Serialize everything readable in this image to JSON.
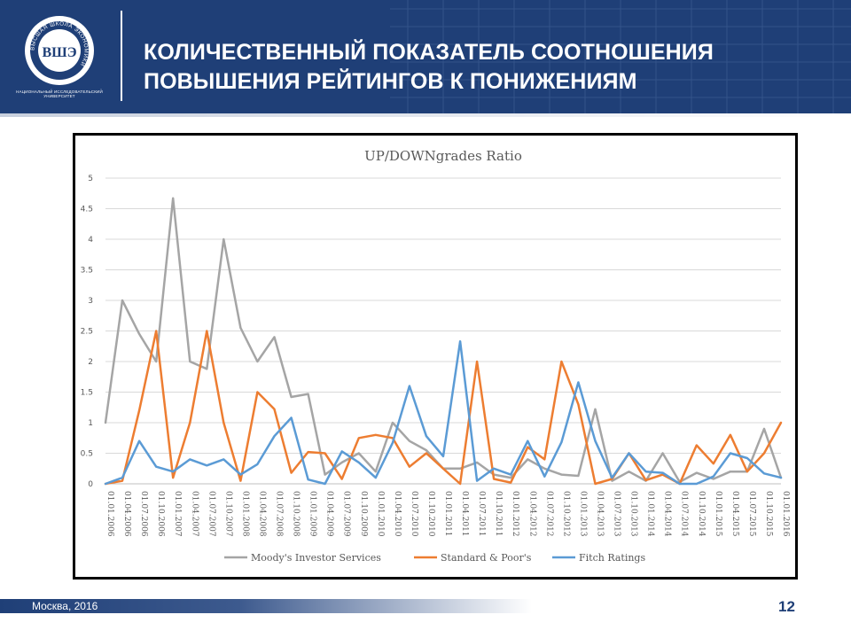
{
  "header": {
    "title_line1": "КОЛИЧЕСТВЕННЫЙ ПОКАЗАТЕЛЬ СООТНОШЕНИЯ",
    "title_line2": "ПОВЫШЕНИЯ РЕЙТИНГОВ К ПОНИЖЕНИЯМ",
    "logo_letters": "ВШЭ",
    "logo_caption": "НАЦИОНАЛЬНЫЙ ИССЛЕДОВАТЕЛЬСКИЙ УНИВЕРСИТЕТ",
    "logo_ring_text": "ВЫСШАЯ ШКОЛА ЭКОНОМИКИ",
    "background_color": "#1f3f77"
  },
  "footer": {
    "city_year": "Москва, 2016",
    "page_number": "12"
  },
  "chart_data": {
    "type": "line",
    "title": "UP/DOWNgrades Ratio",
    "xlabel": "",
    "ylabel": "",
    "ylim": [
      0,
      5
    ],
    "yticks": [
      "0",
      "0.5",
      "1",
      "1.5",
      "2",
      "2.5",
      "3",
      "3.5",
      "4",
      "4.5",
      "5"
    ],
    "grid": true,
    "legend_position": "bottom",
    "categories": [
      "01.01.2006",
      "01.04.2006",
      "01.07.2006",
      "01.10.2006",
      "01.01.2007",
      "01.04.2007",
      "01.07.2007",
      "01.10.2007",
      "01.01.2008",
      "01.04.2008",
      "01.07.2008",
      "01.10.2008",
      "01.01.2009",
      "01.04.2009",
      "01.07.2009",
      "01.10.2009",
      "01.01.2010",
      "01.04.2010",
      "01.07.2010",
      "01.10.2010",
      "01.01.2011",
      "01.04.2011",
      "01.07.2011",
      "01.10.2011",
      "01.01.2012",
      "01.04.2012",
      "01.07.2012",
      "01.10.2012",
      "01.01.2013",
      "01.04.2013",
      "01.07.2013",
      "01.10.2013",
      "01.01.2014",
      "01.04.2014",
      "01.07.2014",
      "01.10.2014",
      "01.01.2015",
      "01.04.2015",
      "01.07.2015",
      "01.10.2015",
      "01.01.2016"
    ],
    "series": [
      {
        "name": "Moody's Investor Services",
        "color": "#a5a5a5",
        "values": [
          1.0,
          3.0,
          2.45,
          2.0,
          4.67,
          2.0,
          1.88,
          4.0,
          2.55,
          2.0,
          2.4,
          1.42,
          1.47,
          0.15,
          0.35,
          0.5,
          0.2,
          1.0,
          0.7,
          0.55,
          0.25,
          0.25,
          0.35,
          0.15,
          0.1,
          0.4,
          0.25,
          0.15,
          0.13,
          1.22,
          0.05,
          0.2,
          0.05,
          0.5,
          0.03,
          0.18,
          0.08,
          0.2,
          0.2,
          0.9,
          0.1
        ]
      },
      {
        "name": "Standard & Poor's",
        "color": "#ed7d31",
        "values": [
          0.0,
          0.05,
          1.2,
          2.5,
          0.1,
          1.0,
          2.5,
          1.0,
          0.05,
          1.5,
          1.22,
          0.18,
          0.52,
          0.5,
          0.08,
          0.75,
          0.8,
          0.75,
          0.28,
          0.5,
          0.25,
          0.0,
          2.0,
          0.08,
          0.02,
          0.6,
          0.4,
          2.0,
          1.3,
          0.0,
          0.08,
          0.5,
          0.06,
          0.15,
          0.0,
          0.63,
          0.33,
          0.8,
          0.2,
          0.5,
          1.0
        ]
      },
      {
        "name": "Fitch Ratings",
        "color": "#5b9bd5",
        "values": [
          0.0,
          0.1,
          0.7,
          0.28,
          0.2,
          0.4,
          0.3,
          0.4,
          0.15,
          0.32,
          0.78,
          1.08,
          0.07,
          0.0,
          0.53,
          0.35,
          0.1,
          0.67,
          1.6,
          0.78,
          0.45,
          2.33,
          0.05,
          0.25,
          0.15,
          0.7,
          0.12,
          0.68,
          1.66,
          0.7,
          0.1,
          0.5,
          0.2,
          0.18,
          0.0,
          0.0,
          0.12,
          0.5,
          0.42,
          0.17,
          0.1
        ]
      }
    ]
  }
}
